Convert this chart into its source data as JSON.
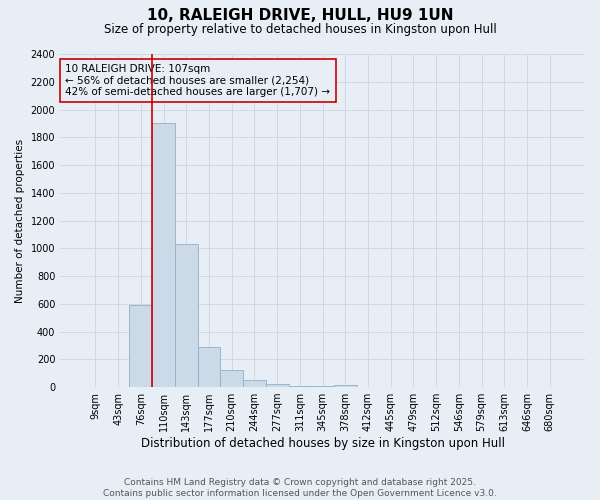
{
  "title": "10, RALEIGH DRIVE, HULL, HU9 1UN",
  "subtitle": "Size of property relative to detached houses in Kingston upon Hull",
  "xlabel": "Distribution of detached houses by size in Kingston upon Hull",
  "ylabel": "Number of detached properties",
  "footer_line1": "Contains HM Land Registry data © Crown copyright and database right 2025.",
  "footer_line2": "Contains public sector information licensed under the Open Government Licence v3.0.",
  "categories": [
    "9sqm",
    "43sqm",
    "76sqm",
    "110sqm",
    "143sqm",
    "177sqm",
    "210sqm",
    "244sqm",
    "277sqm",
    "311sqm",
    "345sqm",
    "378sqm",
    "412sqm",
    "445sqm",
    "479sqm",
    "512sqm",
    "546sqm",
    "579sqm",
    "613sqm",
    "646sqm",
    "680sqm"
  ],
  "values": [
    0,
    0,
    590,
    1900,
    1030,
    290,
    120,
    50,
    20,
    10,
    5,
    15,
    0,
    0,
    0,
    0,
    0,
    0,
    0,
    0,
    0
  ],
  "bar_color": "#ccdae8",
  "bar_edge_color": "#8fb0cc",
  "vline_x_index": 3,
  "vline_color": "#cc0000",
  "ylim": [
    0,
    2400
  ],
  "yticks": [
    0,
    200,
    400,
    600,
    800,
    1000,
    1200,
    1400,
    1600,
    1800,
    2000,
    2200,
    2400
  ],
  "annotation_line1": "10 RALEIGH DRIVE: 107sqm",
  "annotation_line2": "← 56% of detached houses are smaller (2,254)",
  "annotation_line3": "42% of semi-detached houses are larger (1,707) →",
  "bg_color": "#e8eef5",
  "grid_color": "#d0d8e4",
  "title_fontsize": 11,
  "subtitle_fontsize": 8.5,
  "xlabel_fontsize": 8.5,
  "ylabel_fontsize": 7.5,
  "tick_fontsize": 7,
  "annotation_fontsize": 7.5,
  "footer_fontsize": 6.5
}
